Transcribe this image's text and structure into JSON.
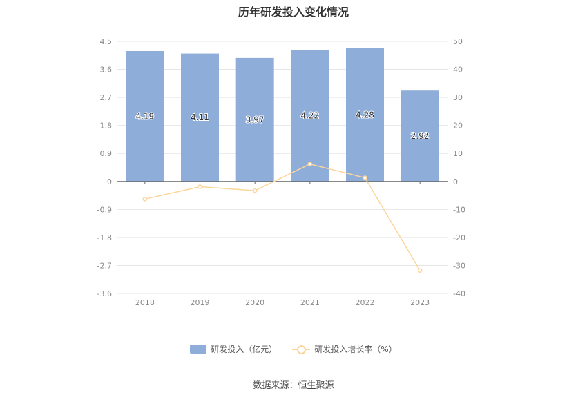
{
  "chart_data": {
    "type": "bar",
    "title": "历年研发投入变化情况",
    "categories": [
      "2018",
      "2019",
      "2020",
      "2021",
      "2022",
      "2023"
    ],
    "series": [
      {
        "name": "研发投入（亿元）",
        "type": "bar",
        "axis": "left",
        "color": "#8eadd9",
        "values": [
          4.19,
          4.11,
          3.97,
          4.22,
          4.28,
          2.92
        ],
        "labels": [
          "4.19",
          "4.11",
          "3.97",
          "4.22",
          "4.28",
          "2.92"
        ]
      },
      {
        "name": "研发投入增长率（%）",
        "type": "line",
        "axis": "right",
        "color": "#fbd59a",
        "values": [
          -6.3,
          -1.9,
          -3.3,
          6.2,
          1.3,
          -31.8
        ]
      }
    ],
    "y_left": {
      "ylim": [
        -3.6,
        4.5
      ],
      "ticks": [
        "4.5",
        "3.6",
        "2.7",
        "1.8",
        "0.9",
        "0",
        "-0.9",
        "-1.8",
        "-2.7",
        "-3.6"
      ]
    },
    "y_right": {
      "ylim": [
        -40,
        50
      ],
      "ticks": [
        "50",
        "40",
        "30",
        "20",
        "10",
        "0",
        "-10",
        "-20",
        "-30",
        "-40"
      ]
    },
    "grid": true,
    "legend_position": "bottom"
  },
  "source": "数据来源：恒生聚源"
}
